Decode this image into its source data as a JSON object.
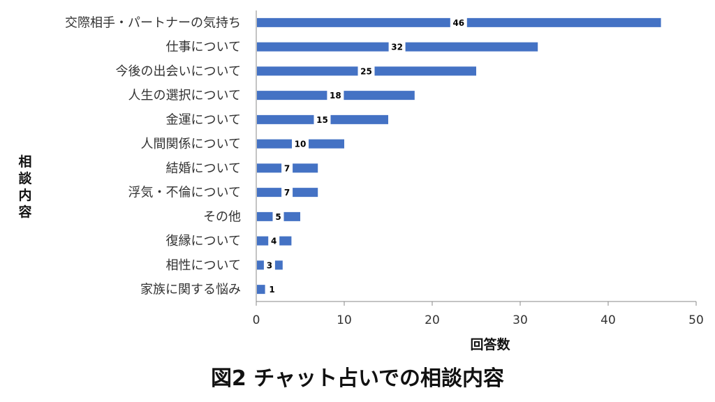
{
  "chart_data": {
    "type": "bar",
    "orientation": "horizontal",
    "title": "図2 チャット占いでの相談内容",
    "xlabel": "回答数",
    "ylabel": "相談内容",
    "xlim": [
      0,
      50
    ],
    "xticks": [
      0,
      10,
      20,
      30,
      40,
      50
    ],
    "grid": false,
    "bar_color": "#4472C4",
    "categories": [
      "交際相手・パートナーの気持ち",
      "仕事について",
      "今後の出会いについて",
      "人生の選択について",
      "金運について",
      "人間関係について",
      "結婚について",
      "浮気・不倫について",
      "その他",
      "復縁について",
      "相性について",
      "家族に関する悩み"
    ],
    "values": [
      46,
      32,
      25,
      18,
      15,
      10,
      7,
      7,
      5,
      4,
      3,
      1
    ]
  }
}
